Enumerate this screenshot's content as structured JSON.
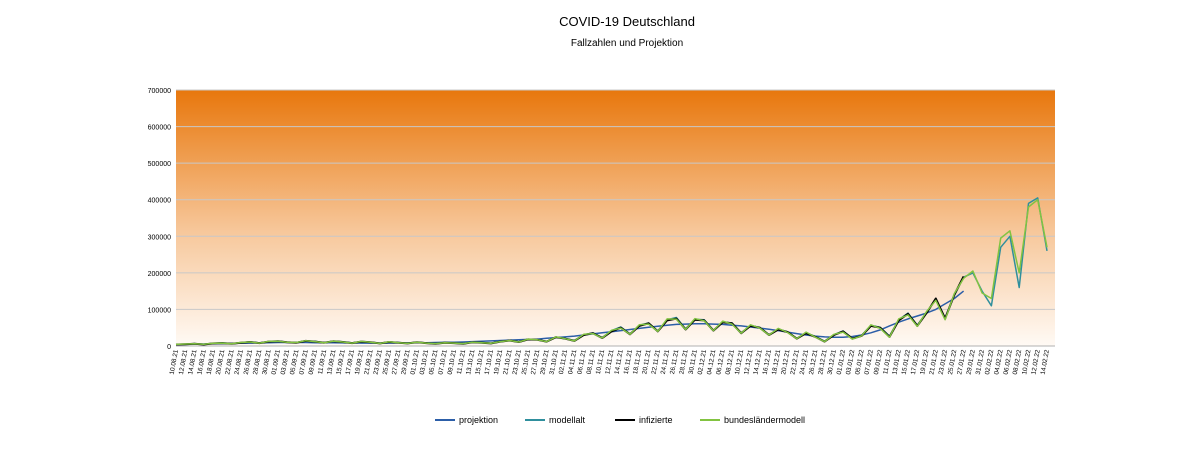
{
  "chart_data": {
    "type": "line",
    "title": "COVID-19 Deutschland",
    "subtitle": "Fallzahlen und Projektion",
    "categories": [
      "10.08.21",
      "12.08.21",
      "14.08.21",
      "16.08.21",
      "18.08.21",
      "20.08.21",
      "22.08.21",
      "24.08.21",
      "26.08.21",
      "28.08.21",
      "30.08.21",
      "01.09.21",
      "03.09.21",
      "05.09.21",
      "07.09.21",
      "09.09.21",
      "11.09.21",
      "13.09.21",
      "15.09.21",
      "17.09.21",
      "19.09.21",
      "21.09.21",
      "23.09.21",
      "25.09.21",
      "27.09.21",
      "29.09.21",
      "01.10.21",
      "03.10.21",
      "05.10.21",
      "07.10.21",
      "09.10.21",
      "11.10.21",
      "13.10.21",
      "15.10.21",
      "17.10.21",
      "19.10.21",
      "21.10.21",
      "23.10.21",
      "25.10.21",
      "27.10.21",
      "29.10.21",
      "31.10.21",
      "02.11.21",
      "04.11.21",
      "06.11.21",
      "08.11.21",
      "10.11.21",
      "12.11.21",
      "14.11.21",
      "16.11.21",
      "18.11.21",
      "20.11.21",
      "22.11.21",
      "24.11.21",
      "26.11.21",
      "28.11.21",
      "30.11.21",
      "02.12.21",
      "04.12.21",
      "06.12.21",
      "08.12.21",
      "10.12.21",
      "12.12.21",
      "14.12.21",
      "16.12.21",
      "18.12.21",
      "20.12.21",
      "22.12.21",
      "24.12.21",
      "26.12.21",
      "28.12.21",
      "30.12.21",
      "01.01.22",
      "03.01.22",
      "05.01.22",
      "07.01.22",
      "09.01.22",
      "11.01.22",
      "13.01.22",
      "15.01.22",
      "17.01.22",
      "19.01.22",
      "21.01.22",
      "23.01.22",
      "25.01.22",
      "27.01.22",
      "29.01.22",
      "31.01.22",
      "02.02.22",
      "04.02.22",
      "06.02.22",
      "08.02.22",
      "10.02.22",
      "12.02.22",
      "14.02.22"
    ],
    "series": [
      {
        "name": "projektion",
        "color": "#2c5ea8",
        "values": [
          4000,
          4500,
          5000,
          5500,
          6000,
          6500,
          7000,
          7500,
          8000,
          8500,
          9000,
          9500,
          9500,
          9500,
          9500,
          9000,
          9000,
          9000,
          8500,
          8500,
          8000,
          8000,
          8000,
          8000,
          8500,
          8500,
          9000,
          9000,
          9500,
          10000,
          10500,
          11000,
          12000,
          13000,
          14000,
          15000,
          16000,
          17000,
          18000,
          19000,
          21000,
          23000,
          25000,
          27000,
          30000,
          33000,
          36000,
          39000,
          42000,
          45000,
          48000,
          51000,
          54000,
          57000,
          59000,
          60000,
          61000,
          61000,
          60000,
          59000,
          57000,
          55000,
          52000,
          49000,
          46000,
          42000,
          38000,
          34000,
          30000,
          27000,
          25000,
          24000,
          24000,
          26000,
          30000,
          36000,
          44000,
          55000,
          65000,
          74000,
          82000,
          90000,
          100000,
          115000,
          130000,
          150000,
          null,
          null,
          null,
          null,
          null,
          null,
          null,
          null,
          null
        ]
      },
      {
        "name": "modellalt",
        "color": "#2f8f9d",
        "values": [
          5000,
          5000,
          6500,
          4500,
          7000,
          8500,
          6500,
          9000,
          11500,
          8500,
          12000,
          13500,
          10500,
          9500,
          14000,
          12500,
          9500,
          13000,
          11500,
          8500,
          12000,
          10500,
          7500,
          11000,
          9500,
          7500,
          10500,
          8500,
          6500,
          9500,
          8500,
          6500,
          10500,
          9500,
          7500,
          12500,
          15500,
          11500,
          18500,
          17500,
          12500,
          24500,
          21000,
          15000,
          31000,
          36000,
          23000,
          42000,
          52000,
          33000,
          57000,
          63000,
          41000,
          72000,
          78000,
          47000,
          73000,
          72000,
          43000,
          66000,
          63000,
          36000,
          56000,
          51000,
          31000,
          46000,
          39000,
          21000,
          36000,
          26000,
          13000,
          31000,
          41000,
          21000,
          29000,
          57000,
          51000,
          27000,
          72000,
          90000,
          57000,
          92000,
          128000,
          77000,
          138000,
          188000,
          200000,
          150000,
          110000,
          270000,
          300000,
          160000,
          390000,
          405000,
          260000
        ]
      },
      {
        "name": "infizierte",
        "color": "#000000",
        "values": [
          4000,
          5000,
          6000,
          4000,
          7000,
          8000,
          6000,
          9000,
          11000,
          8000,
          12000,
          13000,
          10000,
          9000,
          14000,
          12000,
          9000,
          13000,
          11000,
          8000,
          12000,
          10000,
          7000,
          11000,
          9000,
          7000,
          10000,
          8000,
          6000,
          9000,
          8000,
          6000,
          10000,
          9000,
          7000,
          12000,
          15000,
          11000,
          18000,
          17000,
          12000,
          24000,
          20000,
          14000,
          30000,
          35000,
          22000,
          40000,
          50000,
          32000,
          55000,
          62000,
          40000,
          70000,
          75000,
          45000,
          72000,
          70000,
          42000,
          65000,
          62000,
          35000,
          55000,
          50000,
          30000,
          45000,
          38000,
          20000,
          35000,
          25000,
          12000,
          30000,
          40000,
          20000,
          28000,
          55000,
          50000,
          25000,
          70000,
          88000,
          55000,
          90000,
          130000,
          75000,
          140000,
          190000,
          null,
          null,
          null,
          null,
          null,
          null,
          null,
          null,
          null
        ]
      },
      {
        "name": "bundesländermodell",
        "color": "#82c341",
        "values": [
          4500,
          5500,
          6000,
          5000,
          7500,
          8000,
          6000,
          9500,
          11000,
          8000,
          12500,
          13000,
          10000,
          9500,
          14500,
          12000,
          9000,
          13500,
          11000,
          8000,
          12500,
          10000,
          7000,
          11500,
          9000,
          7000,
          10000,
          8000,
          6500,
          9000,
          8000,
          6500,
          10000,
          9000,
          7500,
          12000,
          15000,
          11000,
          19000,
          17000,
          12000,
          25000,
          20000,
          14000,
          32000,
          34000,
          22000,
          43000,
          49000,
          32000,
          58000,
          60000,
          40000,
          74000,
          73000,
          45000,
          75000,
          69000,
          42000,
          68000,
          60000,
          35000,
          58000,
          49000,
          30000,
          48000,
          37000,
          20000,
          38000,
          24000,
          12000,
          32000,
          38000,
          19000,
          28000,
          58000,
          48000,
          24000,
          74000,
          85000,
          54000,
          94000,
          125000,
          72000,
          143000,
          185000,
          205000,
          145000,
          130000,
          295000,
          315000,
          200000,
          380000,
          400000,
          270000
        ]
      }
    ],
    "ylim": [
      0,
      700000
    ],
    "yticks": [
      0,
      100000,
      200000,
      300000,
      400000,
      500000,
      600000,
      700000
    ],
    "grid": true,
    "legend": "bottom"
  }
}
